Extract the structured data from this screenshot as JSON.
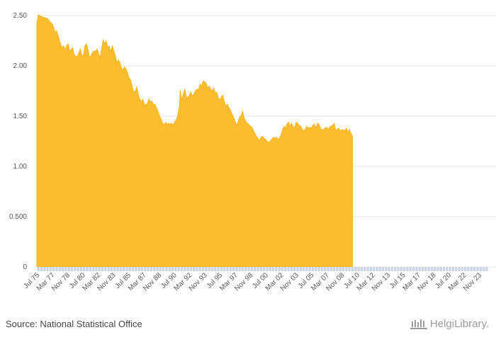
{
  "chart_data": {
    "type": "area",
    "title": "",
    "xlabel": "",
    "ylabel": "",
    "ylim": [
      0,
      2.5
    ],
    "y_ticks": [
      {
        "value": 0,
        "label": "0"
      },
      {
        "value": 0.5,
        "label": "0.500"
      },
      {
        "value": 1.0,
        "label": "1.00"
      },
      {
        "value": 1.5,
        "label": "1.50"
      },
      {
        "value": 2.0,
        "label": "2.00"
      },
      {
        "value": 2.5,
        "label": "2.50"
      }
    ],
    "x_ticks": [
      "Jul 75",
      "Mar 77",
      "Nov 78",
      "Jul 80",
      "Mar 82",
      "Nov 83",
      "Jul 85",
      "Mar 87",
      "Nov 88",
      "Jul 90",
      "Mar 92",
      "Nov 93",
      "Jul 95",
      "Mar 97",
      "Nov 98",
      "Jul 00",
      "Mar 02",
      "Nov 03",
      "Jul 05",
      "Mar 07",
      "Nov 08",
      "Jul 10",
      "Mar 12",
      "Nov 13",
      "Jul 15",
      "Mar 17",
      "Nov 18",
      "Jul 20",
      "Mar 22",
      "Nov 23"
    ],
    "x_range_months": [
      0,
      592
    ],
    "x_tick_step_months": 20,
    "color": "#FBBD2E",
    "series": [
      {
        "name": "value",
        "points": [
          [
            0,
            2.43
          ],
          [
            2,
            2.51
          ],
          [
            6,
            2.49
          ],
          [
            10,
            2.48
          ],
          [
            14,
            2.47
          ],
          [
            17,
            2.44
          ],
          [
            20,
            2.42
          ],
          [
            22,
            2.38
          ],
          [
            24,
            2.33
          ],
          [
            26,
            2.35
          ],
          [
            28,
            2.3
          ],
          [
            31,
            2.22
          ],
          [
            33,
            2.18
          ],
          [
            35,
            2.2
          ],
          [
            37,
            2.16
          ],
          [
            39,
            2.2
          ],
          [
            41,
            2.22
          ],
          [
            43,
            2.15
          ],
          [
            45,
            2.16
          ],
          [
            47,
            2.18
          ],
          [
            49,
            2.11
          ],
          [
            51,
            2.1
          ],
          [
            53,
            2.09
          ],
          [
            55,
            2.13
          ],
          [
            57,
            2.17
          ],
          [
            59,
            2.11
          ],
          [
            61,
            2.1
          ],
          [
            63,
            2.2
          ],
          [
            65,
            2.22
          ],
          [
            67,
            2.17
          ],
          [
            69,
            2.09
          ],
          [
            71,
            2.1
          ],
          [
            73,
            2.13
          ],
          [
            75,
            2.15
          ],
          [
            77,
            2.14
          ],
          [
            79,
            2.17
          ],
          [
            81,
            2.12
          ],
          [
            83,
            2.08
          ],
          [
            85,
            2.18
          ],
          [
            87,
            2.26
          ],
          [
            89,
            2.22
          ],
          [
            91,
            2.25
          ],
          [
            93,
            2.18
          ],
          [
            95,
            2.2
          ],
          [
            97,
            2.14
          ],
          [
            99,
            2.2
          ],
          [
            101,
            2.15
          ],
          [
            103,
            2.1
          ],
          [
            105,
            2.03
          ],
          [
            107,
            2.06
          ],
          [
            109,
            2.03
          ],
          [
            111,
            1.98
          ],
          [
            113,
            1.96
          ],
          [
            115,
            1.99
          ],
          [
            117,
            1.97
          ],
          [
            119,
            1.93
          ],
          [
            121,
            1.88
          ],
          [
            123,
            1.86
          ],
          [
            125,
            1.8
          ],
          [
            127,
            1.74
          ],
          [
            129,
            1.75
          ],
          [
            131,
            1.79
          ],
          [
            133,
            1.72
          ],
          [
            135,
            1.67
          ],
          [
            137,
            1.64
          ],
          [
            139,
            1.67
          ],
          [
            141,
            1.62
          ],
          [
            143,
            1.61
          ],
          [
            145,
            1.63
          ],
          [
            147,
            1.67
          ],
          [
            149,
            1.64
          ],
          [
            151,
            1.65
          ],
          [
            153,
            1.61
          ],
          [
            155,
            1.62
          ],
          [
            157,
            1.58
          ],
          [
            159,
            1.55
          ],
          [
            161,
            1.5
          ],
          [
            163,
            1.47
          ],
          [
            165,
            1.43
          ],
          [
            167,
            1.41
          ],
          [
            169,
            1.44
          ],
          [
            171,
            1.42
          ],
          [
            173,
            1.43
          ],
          [
            175,
            1.42
          ],
          [
            177,
            1.43
          ],
          [
            179,
            1.41
          ],
          [
            181,
            1.45
          ],
          [
            183,
            1.46
          ],
          [
            185,
            1.52
          ],
          [
            187,
            1.6
          ],
          [
            188,
            1.76
          ],
          [
            190,
            1.66
          ],
          [
            192,
            1.72
          ],
          [
            194,
            1.77
          ],
          [
            196,
            1.7
          ],
          [
            198,
            1.68
          ],
          [
            200,
            1.71
          ],
          [
            202,
            1.74
          ],
          [
            204,
            1.7
          ],
          [
            206,
            1.72
          ],
          [
            208,
            1.75
          ],
          [
            210,
            1.77
          ],
          [
            212,
            1.76
          ],
          [
            214,
            1.82
          ],
          [
            216,
            1.8
          ],
          [
            218,
            1.85
          ],
          [
            220,
            1.84
          ],
          [
            222,
            1.83
          ],
          [
            224,
            1.78
          ],
          [
            226,
            1.8
          ],
          [
            228,
            1.77
          ],
          [
            230,
            1.75
          ],
          [
            232,
            1.78
          ],
          [
            234,
            1.73
          ],
          [
            236,
            1.74
          ],
          [
            238,
            1.68
          ],
          [
            240,
            1.66
          ],
          [
            242,
            1.69
          ],
          [
            244,
            1.71
          ],
          [
            246,
            1.64
          ],
          [
            248,
            1.6
          ],
          [
            250,
            1.62
          ],
          [
            252,
            1.58
          ],
          [
            254,
            1.56
          ],
          [
            256,
            1.52
          ],
          [
            258,
            1.49
          ],
          [
            260,
            1.45
          ],
          [
            262,
            1.41
          ],
          [
            264,
            1.45
          ],
          [
            266,
            1.49
          ],
          [
            268,
            1.51
          ],
          [
            270,
            1.55
          ],
          [
            272,
            1.48
          ],
          [
            274,
            1.45
          ],
          [
            276,
            1.43
          ],
          [
            278,
            1.42
          ],
          [
            280,
            1.4
          ],
          [
            282,
            1.39
          ],
          [
            284,
            1.36
          ],
          [
            286,
            1.33
          ],
          [
            288,
            1.3
          ],
          [
            290,
            1.28
          ],
          [
            292,
            1.26
          ],
          [
            294,
            1.29
          ],
          [
            296,
            1.3
          ],
          [
            298,
            1.28
          ],
          [
            300,
            1.27
          ],
          [
            302,
            1.25
          ],
          [
            304,
            1.24
          ],
          [
            306,
            1.25
          ],
          [
            308,
            1.27
          ],
          [
            310,
            1.29
          ],
          [
            312,
            1.28
          ],
          [
            314,
            1.29
          ],
          [
            316,
            1.27
          ],
          [
            318,
            1.28
          ],
          [
            320,
            1.31
          ],
          [
            322,
            1.36
          ],
          [
            324,
            1.4
          ],
          [
            326,
            1.38
          ],
          [
            328,
            1.42
          ],
          [
            330,
            1.44
          ],
          [
            332,
            1.4
          ],
          [
            334,
            1.43
          ],
          [
            336,
            1.4
          ],
          [
            338,
            1.38
          ],
          [
            340,
            1.44
          ],
          [
            342,
            1.43
          ],
          [
            344,
            1.41
          ],
          [
            346,
            1.4
          ],
          [
            348,
            1.37
          ],
          [
            350,
            1.35
          ],
          [
            352,
            1.37
          ],
          [
            354,
            1.4
          ],
          [
            356,
            1.38
          ],
          [
            358,
            1.39
          ],
          [
            360,
            1.38
          ],
          [
            362,
            1.41
          ],
          [
            364,
            1.42
          ],
          [
            366,
            1.38
          ],
          [
            368,
            1.43
          ],
          [
            370,
            1.42
          ],
          [
            372,
            1.38
          ],
          [
            374,
            1.36
          ],
          [
            376,
            1.37
          ],
          [
            378,
            1.38
          ],
          [
            380,
            1.39
          ],
          [
            382,
            1.37
          ],
          [
            384,
            1.39
          ],
          [
            386,
            1.4
          ],
          [
            388,
            1.41
          ],
          [
            390,
            1.43
          ],
          [
            392,
            1.36
          ],
          [
            394,
            1.37
          ],
          [
            396,
            1.38
          ],
          [
            398,
            1.35
          ],
          [
            400,
            1.37
          ],
          [
            402,
            1.36
          ],
          [
            404,
            1.36
          ],
          [
            406,
            1.38
          ],
          [
            408,
            1.34
          ],
          [
            410,
            1.37
          ],
          [
            412,
            1.33
          ],
          [
            414,
            1.3
          ]
        ]
      }
    ]
  },
  "footer": {
    "source": "Source: National Statistical Office",
    "brand": "HelgiLibrary."
  }
}
